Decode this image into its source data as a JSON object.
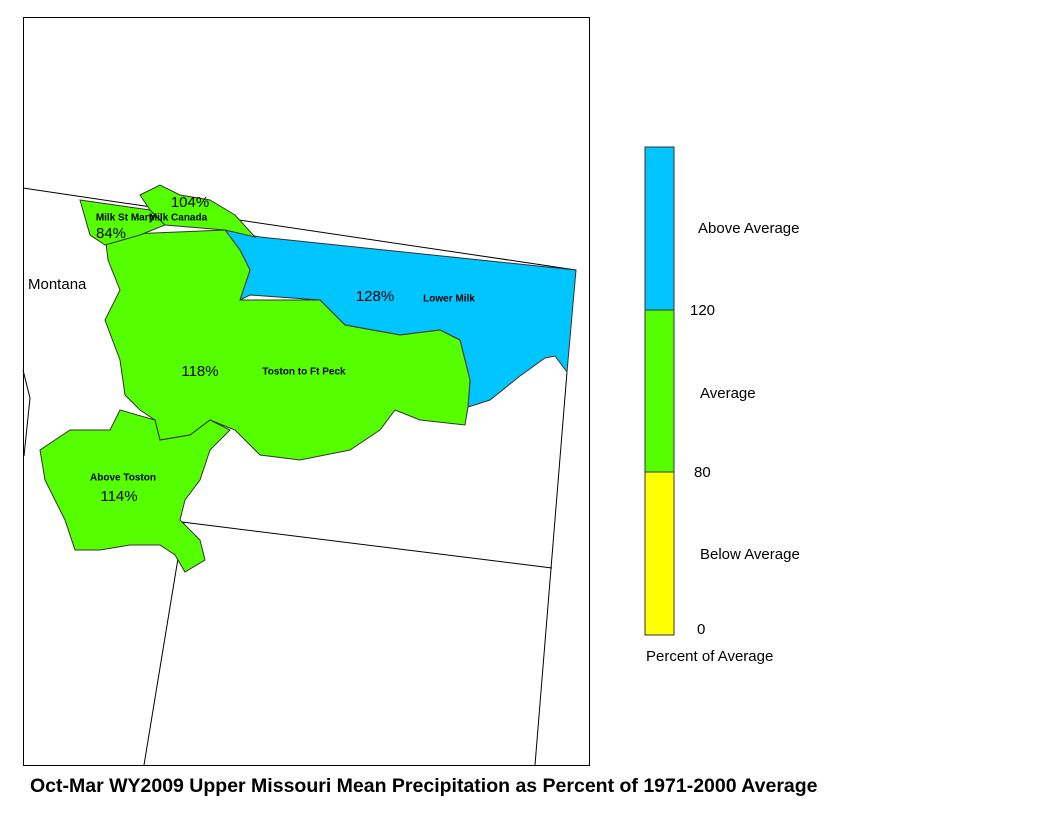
{
  "title": "Oct-Mar WY2009 Upper Missouri Mean Precipitation as Percent of 1971-2000 Average",
  "state_label": "Montana",
  "basins": [
    {
      "name": "Milk Canada",
      "label": "104%",
      "color": "#55ff00"
    },
    {
      "name": "Milk St Mary",
      "label": "84%",
      "color": "#55ff00"
    },
    {
      "name": "Lower Milk",
      "label": "128%",
      "color": "#00c5ff"
    },
    {
      "name": "Toston to Ft Peck",
      "label": "118%",
      "color": "#55ff00"
    },
    {
      "name": "Above Toston",
      "label": "114%",
      "color": "#55ff00"
    }
  ],
  "legend": {
    "title": "Percent of Average",
    "classes": [
      {
        "name": "Above Average",
        "color": "#00c5ff"
      },
      {
        "name": "Average",
        "color": "#55ff00"
      },
      {
        "name": "Below Average",
        "color": "#ffff00"
      }
    ],
    "ticks": [
      120,
      80,
      0
    ]
  }
}
